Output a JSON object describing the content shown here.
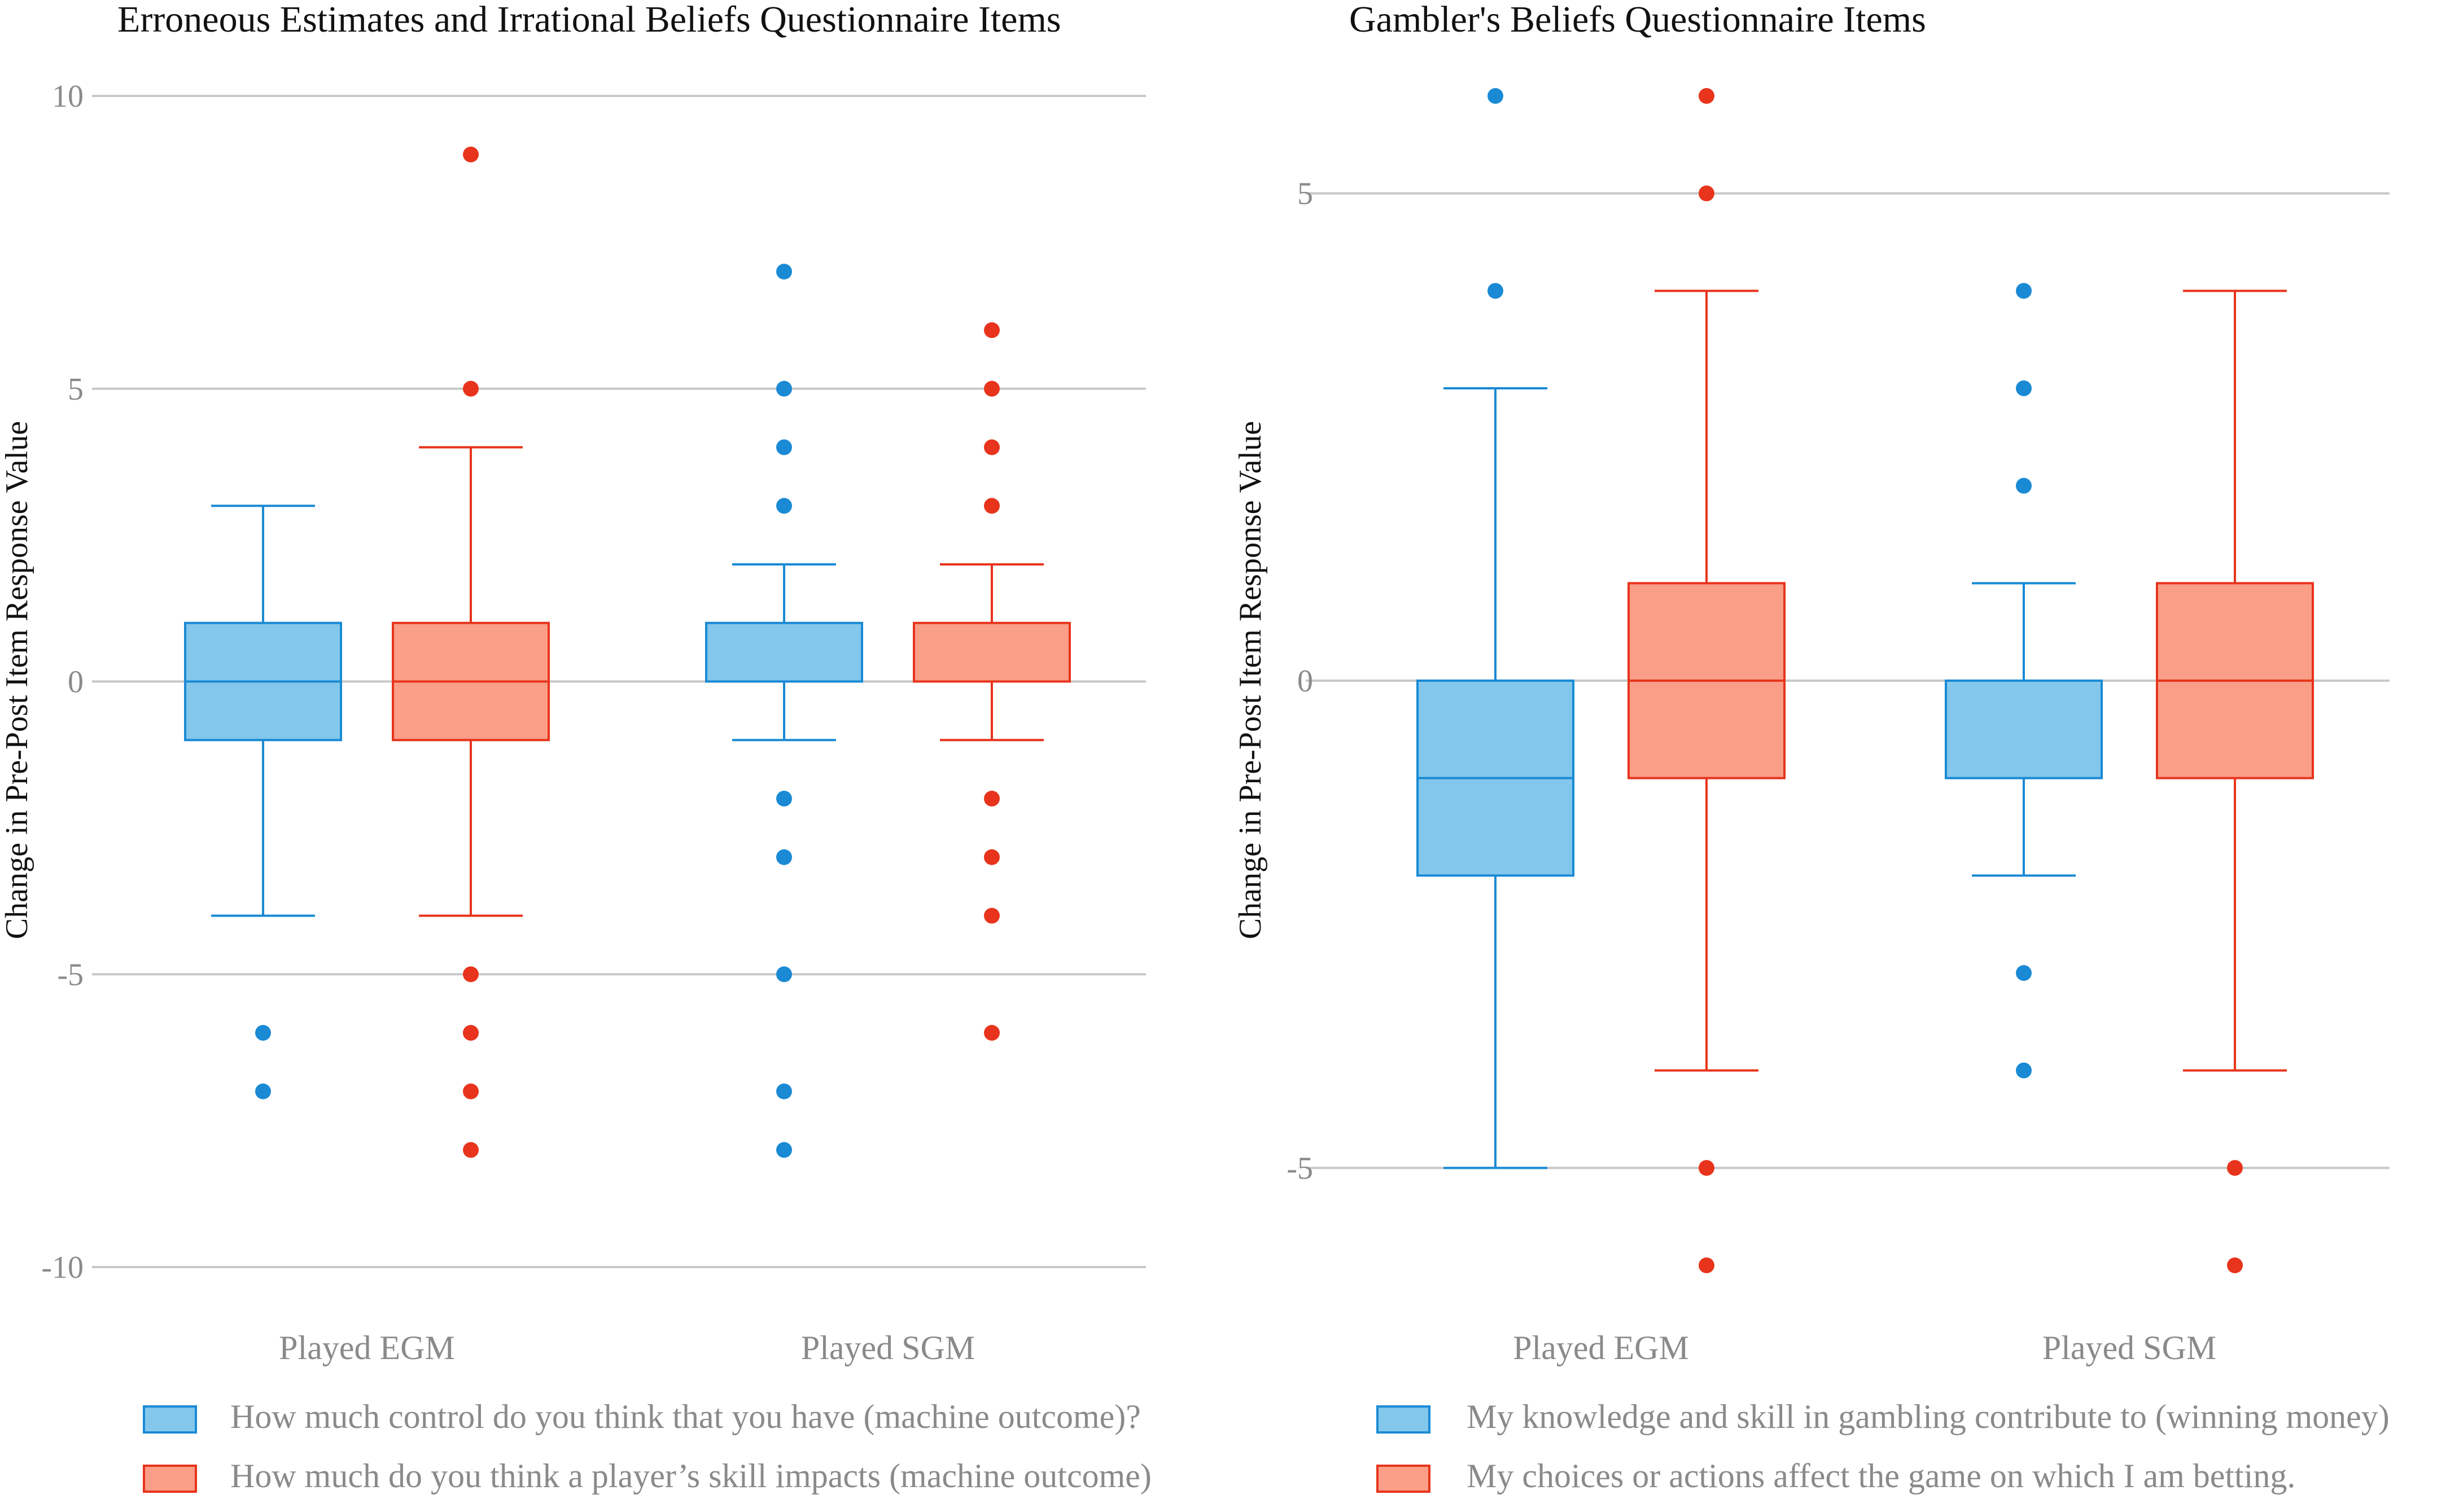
{
  "chart_data": [
    {
      "type": "box",
      "title": "Erroneous Estimates and Irrational Beliefs Questionnaire Items",
      "ylabel": "Change in Pre-Post Item Response Value",
      "xlabel": "",
      "ylim": [
        -10,
        10
      ],
      "yticks": [
        -10,
        -5,
        0,
        5,
        10
      ],
      "tick_labels": [
        "-10",
        "-5",
        "0",
        "5",
        "10"
      ],
      "categories": [
        "Played EGM",
        "Played SGM"
      ],
      "grid": true,
      "legend_position": "bottom-left",
      "series": [
        {
          "name": "How much control do you think that you have (machine outcome)?",
          "color": "#1a8ad4",
          "fill": "#83c7ec",
          "boxes": [
            {
              "category": "Played EGM",
              "q1": -1,
              "median": 0,
              "q3": 1,
              "whisker_low": -4,
              "whisker_high": 3,
              "outliers": [
                -6,
                -7
              ]
            },
            {
              "category": "Played SGM",
              "q1": 0,
              "median": 0,
              "q3": 1,
              "whisker_low": -1,
              "whisker_high": 2,
              "outliers": [
                7,
                5,
                4,
                3,
                -2,
                -3,
                -5,
                -7,
                -8
              ]
            }
          ]
        },
        {
          "name": "How much do you think a player’s skill impacts (machine outcome)",
          "color": "#e8341c",
          "fill": "#fa9e88",
          "boxes": [
            {
              "category": "Played EGM",
              "q1": -1,
              "median": 0,
              "q3": 1,
              "whisker_low": -4,
              "whisker_high": 4,
              "outliers": [
                9,
                5,
                -5,
                -6,
                -7,
                -8
              ]
            },
            {
              "category": "Played SGM",
              "q1": 0,
              "median": 0,
              "q3": 1,
              "whisker_low": -1,
              "whisker_high": 2,
              "outliers": [
                6,
                5,
                4,
                3,
                -2,
                -3,
                -4,
                -6
              ]
            }
          ]
        }
      ]
    },
    {
      "type": "box",
      "title": "Gambler's Beliefs Questionnaire Items",
      "ylabel": "Change in Pre-Post Item Response Value",
      "xlabel": "",
      "ylim": [
        -6,
        6
      ],
      "yticks": [
        -5,
        0,
        5
      ],
      "tick_labels": [
        "-5",
        "0",
        "5"
      ],
      "categories": [
        "Played EGM",
        "Played SGM"
      ],
      "grid": true,
      "legend_position": "bottom-left",
      "series": [
        {
          "name": "My knowledge and skill in gambling contribute to (winning money)",
          "color": "#1a8ad4",
          "fill": "#83c7ec",
          "boxes": [
            {
              "category": "Played EGM",
              "q1": -2,
              "median": -1,
              "q3": 0,
              "whisker_low": -5,
              "whisker_high": 3,
              "outliers": [
                6,
                4
              ]
            },
            {
              "category": "Played SGM",
              "q1": -1,
              "median": 0,
              "q3": 0,
              "whisker_low": -2,
              "whisker_high": 1,
              "outliers": [
                4,
                3,
                2,
                -3,
                -4
              ]
            }
          ]
        },
        {
          "name": "My choices or actions affect the game on which I am betting.",
          "color": "#e8341c",
          "fill": "#fa9e88",
          "boxes": [
            {
              "category": "Played EGM",
              "q1": -1,
              "median": 0,
              "q3": 1,
              "whisker_low": -4,
              "whisker_high": 4,
              "outliers": [
                6,
                5,
                -5,
                -6
              ]
            },
            {
              "category": "Played SGM",
              "q1": -1,
              "median": 0,
              "q3": 1,
              "whisker_low": -4,
              "whisker_high": 4,
              "outliers": [
                -5,
                -6
              ]
            }
          ]
        }
      ]
    }
  ]
}
